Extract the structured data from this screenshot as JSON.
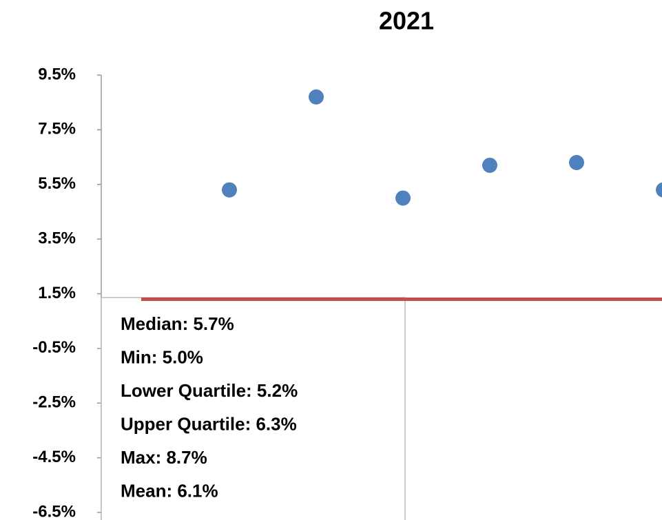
{
  "chart_data": {
    "type": "scatter",
    "title": "2021",
    "categories": [
      null,
      null,
      null,
      null,
      null,
      null
    ],
    "values": [
      5.3,
      8.7,
      5.0,
      6.2,
      6.3,
      5.3
    ],
    "color": "#4f81bd",
    "ylim": [
      -6.5,
      9.5
    ],
    "yticks": [
      {
        "value": 9.5,
        "label": "9.5%"
      },
      {
        "value": 7.5,
        "label": "7.5%"
      },
      {
        "value": 5.5,
        "label": "5.5%"
      },
      {
        "value": 3.5,
        "label": "3.5%"
      },
      {
        "value": 1.5,
        "label": "1.5%"
      },
      {
        "value": -0.5,
        "label": "-0.5%"
      },
      {
        "value": -2.5,
        "label": "-2.5%"
      },
      {
        "value": -4.5,
        "label": "-4.5%"
      },
      {
        "value": -6.5,
        "label": "-6.5%"
      }
    ],
    "grid": false,
    "reference_line": {
      "value": 1.3,
      "color": "#c0504d"
    },
    "annotations": [
      "Median: 5.7%",
      "Min: 5.0%",
      "Lower Quartile: 5.2%",
      "Upper Quartile: 6.3%",
      "Max: 8.7%",
      "Mean: 6.1%"
    ]
  }
}
